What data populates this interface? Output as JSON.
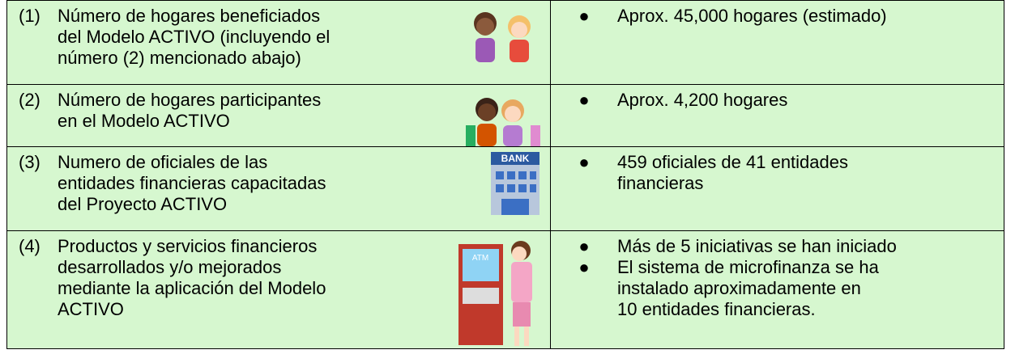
{
  "table": {
    "rows": [
      {
        "number": "(1)",
        "item": [
          "Número de hogares beneficiados",
          "del Modelo ACTIVO (incluyendo el",
          "número (2) mencionado abajo)"
        ],
        "result": [
          [
            "Aprox. 45,000 hogares (estimado)"
          ]
        ]
      },
      {
        "number": "(2)",
        "item": [
          "Número de hogares participantes",
          "en el Modelo ACTIVO"
        ],
        "result": [
          [
            "Aprox. 4,200 hogares"
          ]
        ]
      },
      {
        "number": "(3)",
        "item": [
          "Numero de oficiales de las",
          "entidades financieras capacitadas",
          "del Proyecto ACTIVO"
        ],
        "result": [
          [
            "459 oficiales de 41 entidades",
            "financieras"
          ]
        ]
      },
      {
        "number": "(4)",
        "item": [
          "Productos y servicios financieros",
          "desarrollados y/o mejorados",
          "mediante la aplicación del Modelo",
          "ACTIVO"
        ],
        "result": [
          [
            "Más de 5 iniciativas se han iniciado"
          ],
          [
            "El sistema de microfinanza se ha",
            "instalado aproximadamente en",
            "10 entidades financieras."
          ]
        ]
      }
    ]
  }
}
